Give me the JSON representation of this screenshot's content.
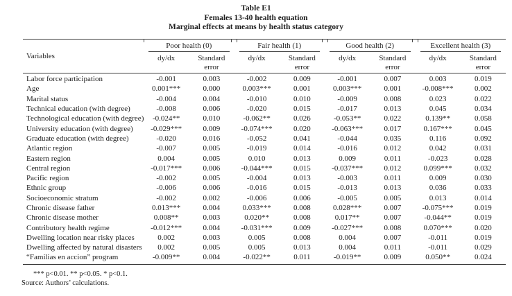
{
  "title": {
    "line1": "Table E1",
    "line2": "Females 13-40 health equation",
    "line3": "Marginal effects at means by health status category"
  },
  "table": {
    "variables_header": "Variables",
    "groups": [
      {
        "label": "Poor health (0)"
      },
      {
        "label": "Fair health (1)"
      },
      {
        "label": "Good health (2)"
      },
      {
        "label": "Excellent health (3)"
      }
    ],
    "subheader": {
      "dydx": "dy/dx",
      "se_line1": "Standard",
      "se_line2": "error"
    },
    "rows": [
      {
        "label": "Labor force participation",
        "values": [
          "-0.001",
          "0.003",
          "-0.002",
          "0.009",
          "-0.001",
          "0.007",
          "0.003",
          "0.019"
        ]
      },
      {
        "label": "Age",
        "values": [
          "0.001***",
          "0.000",
          "0.003***",
          "0.001",
          "0.003***",
          "0.001",
          "-0.008***",
          "0.002"
        ]
      },
      {
        "label": "Marital status",
        "values": [
          "-0.004",
          "0.004",
          "-0.010",
          "0.010",
          "-0.009",
          "0.008",
          "0.023",
          "0.022"
        ]
      },
      {
        "label": "Technical education (with degree)",
        "values": [
          "-0.008",
          "0.006",
          "-0.020",
          "0.015",
          "-0.017",
          "0.013",
          "0.045",
          "0.034"
        ]
      },
      {
        "label": "Technological education (with degree)",
        "values": [
          "-0.024**",
          "0.010",
          "-0.062**",
          "0.026",
          "-0.053**",
          "0.022",
          "0.139**",
          "0.058"
        ]
      },
      {
        "label": "University education (with degree)",
        "values": [
          "-0.029***",
          "0.009",
          "-0.074***",
          "0.020",
          "-0.063***",
          "0.017",
          "0.167***",
          "0.045"
        ]
      },
      {
        "label": "Graduate education (with degree)",
        "values": [
          "-0.020",
          "0.016",
          "-0.052",
          "0.041",
          "-0.044",
          "0.035",
          "0.116",
          "0.092"
        ]
      },
      {
        "label": "Atlantic region",
        "values": [
          "-0.007",
          "0.005",
          "-0.019",
          "0.014",
          "-0.016",
          "0.012",
          "0.042",
          "0.031"
        ]
      },
      {
        "label": "Eastern region",
        "values": [
          "0.004",
          "0.005",
          "0.010",
          "0.013",
          "0.009",
          "0.011",
          "-0.023",
          "0.028"
        ]
      },
      {
        "label": "Central region",
        "values": [
          "-0.017***",
          "0.006",
          "-0.044***",
          "0.015",
          "-0.037***",
          "0.012",
          "0.099***",
          "0.032"
        ]
      },
      {
        "label": "Pacific region",
        "values": [
          "-0.002",
          "0.005",
          "-0.004",
          "0.013",
          "-0.003",
          "0.011",
          "0.009",
          "0.030"
        ]
      },
      {
        "label": "Ethnic group",
        "values": [
          "-0.006",
          "0.006",
          "-0.016",
          "0.015",
          "-0.013",
          "0.013",
          "0.036",
          "0.033"
        ]
      },
      {
        "label": "Socioeconomic stratum",
        "values": [
          "-0.002",
          "0.002",
          "-0.006",
          "0.006",
          "-0.005",
          "0.005",
          "0.013",
          "0.014"
        ]
      },
      {
        "label": "Chronic disease father",
        "values": [
          "0.013***",
          "0.004",
          "0.033***",
          "0.008",
          "0.028***",
          "0.007",
          "-0.075***",
          "0.019"
        ]
      },
      {
        "label": "Chronic disease mother",
        "values": [
          "0.008**",
          "0.003",
          "0.020**",
          "0.008",
          "0.017**",
          "0.007",
          "-0.044**",
          "0.019"
        ]
      },
      {
        "label": "Contributory health regime",
        "values": [
          "-0.012***",
          "0.004",
          "-0.031***",
          "0.009",
          "-0.027***",
          "0.008",
          "0.070***",
          "0.020"
        ]
      },
      {
        "label": "Dwelling location near risky places",
        "values": [
          "0.002",
          "0.003",
          "0.005",
          "0.008",
          "0.004",
          "0.007",
          "-0.011",
          "0.019"
        ]
      },
      {
        "label": "Dwelling affected by natural disasters",
        "values": [
          "0.002",
          "0.005",
          "0.005",
          "0.013",
          "0.004",
          "0.011",
          "-0.011",
          "0.029"
        ]
      },
      {
        "label": "“Familias en accion” program",
        "values": [
          "-0.009**",
          "0.004",
          "-0.022**",
          "0.011",
          "-0.019**",
          "0.009",
          "0.050**",
          "0.024"
        ]
      }
    ]
  },
  "footnotes": {
    "significance": "*** p<0.01. ** p<0.05. * p<0.1.",
    "source": "Source: Authors’ calculations."
  }
}
